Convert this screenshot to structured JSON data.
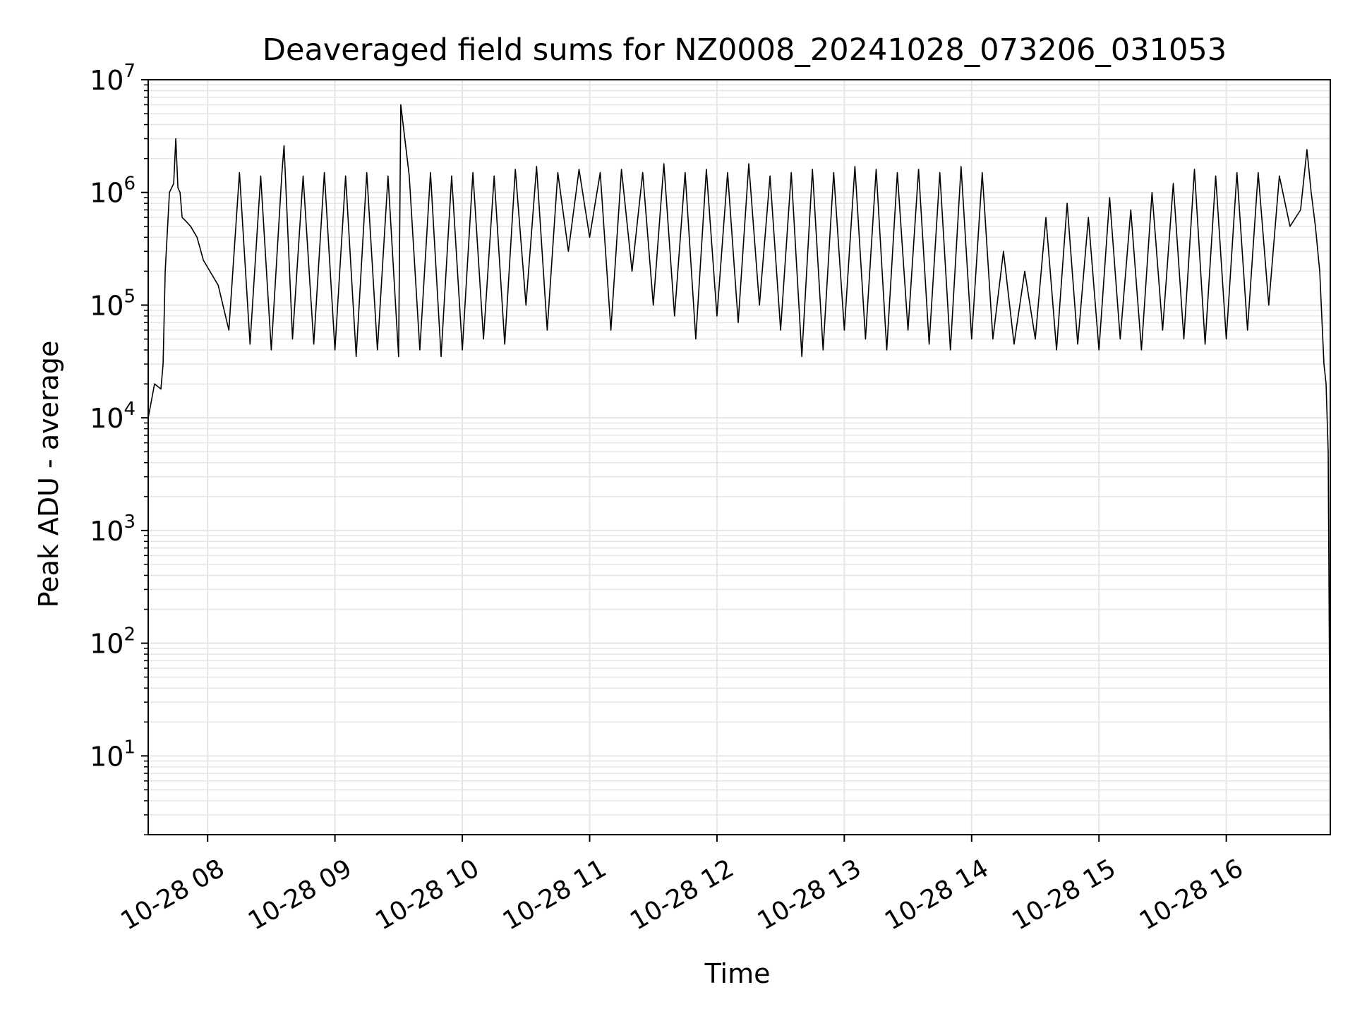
{
  "chart_data": {
    "type": "line",
    "title": "Deaveraged field sums for NZ0008_20241028_073206_031053",
    "xlabel": "Time",
    "ylabel": "Peak ADU - average",
    "yscale": "log",
    "grid": true,
    "grid_minor": true,
    "line_color": "#000000",
    "grid_color": "#e6e6e6",
    "xlim": [
      "2024-10-28 07:32",
      "2024-10-28 16:49"
    ],
    "ylim": [
      2,
      10000000
    ],
    "x_ticks": [
      {
        "label": "10-28 08",
        "time": "2024-10-28 08:00"
      },
      {
        "label": "10-28 09",
        "time": "2024-10-28 09:00"
      },
      {
        "label": "10-28 10",
        "time": "2024-10-28 10:00"
      },
      {
        "label": "10-28 11",
        "time": "2024-10-28 11:00"
      },
      {
        "label": "10-28 12",
        "time": "2024-10-28 12:00"
      },
      {
        "label": "10-28 13",
        "time": "2024-10-28 13:00"
      },
      {
        "label": "10-28 14",
        "time": "2024-10-28 14:00"
      },
      {
        "label": "10-28 15",
        "time": "2024-10-28 15:00"
      },
      {
        "label": "10-28 16",
        "time": "2024-10-28 16:00"
      }
    ],
    "y_ticks": [
      {
        "base": "10",
        "exp": "1",
        "value": 10
      },
      {
        "base": "10",
        "exp": "2",
        "value": 100
      },
      {
        "base": "10",
        "exp": "3",
        "value": 1000
      },
      {
        "base": "10",
        "exp": "4",
        "value": 10000
      },
      {
        "base": "10",
        "exp": "5",
        "value": 100000
      },
      {
        "base": "10",
        "exp": "6",
        "value": 1000000
      },
      {
        "base": "10",
        "exp": "7",
        "value": 10000000
      }
    ],
    "series": [
      {
        "x": [
          "2024-10-28 07:32",
          "2024-10-28 07:35",
          "2024-10-28 07:38",
          "2024-10-28 07:39",
          "2024-10-28 07:40",
          "2024-10-28 07:42",
          "2024-10-28 07:44",
          "2024-10-28 07:45",
          "2024-10-28 07:46",
          "2024-10-28 07:47",
          "2024-10-28 07:48",
          "2024-10-28 07:50",
          "2024-10-28 07:52",
          "2024-10-28 07:55",
          "2024-10-28 07:58",
          "2024-10-28 08:05",
          "2024-10-28 08:10",
          "2024-10-28 08:15",
          "2024-10-28 08:20",
          "2024-10-28 08:25",
          "2024-10-28 08:30",
          "2024-10-28 08:35",
          "2024-10-28 08:36",
          "2024-10-28 08:40",
          "2024-10-28 08:45",
          "2024-10-28 08:50",
          "2024-10-28 08:55",
          "2024-10-28 09:00",
          "2024-10-28 09:05",
          "2024-10-28 09:10",
          "2024-10-28 09:15",
          "2024-10-28 09:20",
          "2024-10-28 09:25",
          "2024-10-28 09:30",
          "2024-10-28 09:31",
          "2024-10-28 09:35",
          "2024-10-28 09:40",
          "2024-10-28 09:45",
          "2024-10-28 09:50",
          "2024-10-28 09:55",
          "2024-10-28 10:00",
          "2024-10-28 10:05",
          "2024-10-28 10:10",
          "2024-10-28 10:15",
          "2024-10-28 10:20",
          "2024-10-28 10:25",
          "2024-10-28 10:30",
          "2024-10-28 10:35",
          "2024-10-28 10:40",
          "2024-10-28 10:45",
          "2024-10-28 10:50",
          "2024-10-28 10:55",
          "2024-10-28 11:00",
          "2024-10-28 11:05",
          "2024-10-28 11:10",
          "2024-10-28 11:15",
          "2024-10-28 11:20",
          "2024-10-28 11:25",
          "2024-10-28 11:30",
          "2024-10-28 11:35",
          "2024-10-28 11:40",
          "2024-10-28 11:45",
          "2024-10-28 11:50",
          "2024-10-28 11:55",
          "2024-10-28 12:00",
          "2024-10-28 12:05",
          "2024-10-28 12:10",
          "2024-10-28 12:15",
          "2024-10-28 12:20",
          "2024-10-28 12:25",
          "2024-10-28 12:30",
          "2024-10-28 12:35",
          "2024-10-28 12:40",
          "2024-10-28 12:45",
          "2024-10-28 12:50",
          "2024-10-28 12:55",
          "2024-10-28 13:00",
          "2024-10-28 13:05",
          "2024-10-28 13:10",
          "2024-10-28 13:15",
          "2024-10-28 13:20",
          "2024-10-28 13:25",
          "2024-10-28 13:30",
          "2024-10-28 13:35",
          "2024-10-28 13:40",
          "2024-10-28 13:45",
          "2024-10-28 13:50",
          "2024-10-28 13:55",
          "2024-10-28 14:00",
          "2024-10-28 14:05",
          "2024-10-28 14:10",
          "2024-10-28 14:15",
          "2024-10-28 14:20",
          "2024-10-28 14:25",
          "2024-10-28 14:30",
          "2024-10-28 14:35",
          "2024-10-28 14:40",
          "2024-10-28 14:45",
          "2024-10-28 14:50",
          "2024-10-28 14:55",
          "2024-10-28 15:00",
          "2024-10-28 15:05",
          "2024-10-28 15:10",
          "2024-10-28 15:15",
          "2024-10-28 15:20",
          "2024-10-28 15:25",
          "2024-10-28 15:30",
          "2024-10-28 15:35",
          "2024-10-28 15:40",
          "2024-10-28 15:45",
          "2024-10-28 15:50",
          "2024-10-28 15:55",
          "2024-10-28 16:00",
          "2024-10-28 16:05",
          "2024-10-28 16:10",
          "2024-10-28 16:15",
          "2024-10-28 16:20",
          "2024-10-28 16:25",
          "2024-10-28 16:30",
          "2024-10-28 16:35",
          "2024-10-28 16:38",
          "2024-10-28 16:40",
          "2024-10-28 16:42",
          "2024-10-28 16:44",
          "2024-10-28 16:46",
          "2024-10-28 16:47",
          "2024-10-28 16:48",
          "2024-10-28 16:49"
        ],
        "values": [
          10000,
          20000,
          18000,
          30000,
          200000,
          1000000,
          1200000,
          3000000,
          1100000,
          1000000,
          600000,
          550000,
          500000,
          400000,
          250000,
          150000,
          60000,
          1500000,
          45000,
          1400000,
          40000,
          1500000,
          2600000,
          50000,
          1400000,
          45000,
          1500000,
          40000,
          1400000,
          35000,
          1500000,
          40000,
          1400000,
          35000,
          6000000,
          1400000,
          40000,
          1500000,
          35000,
          1400000,
          40000,
          1500000,
          50000,
          1400000,
          45000,
          1600000,
          100000,
          1700000,
          60000,
          1500000,
          300000,
          1600000,
          400000,
          1500000,
          60000,
          1600000,
          200000,
          1500000,
          100000,
          1800000,
          80000,
          1500000,
          50000,
          1600000,
          80000,
          1500000,
          70000,
          1800000,
          100000,
          1400000,
          60000,
          1500000,
          35000,
          1600000,
          40000,
          1500000,
          60000,
          1700000,
          50000,
          1600000,
          40000,
          1500000,
          60000,
          1600000,
          45000,
          1500000,
          40000,
          1700000,
          50000,
          1500000,
          50000,
          300000,
          45000,
          200000,
          50000,
          600000,
          40000,
          800000,
          45000,
          600000,
          40000,
          900000,
          50000,
          700000,
          40000,
          1000000,
          60000,
          1200000,
          50000,
          1600000,
          45000,
          1400000,
          50000,
          1500000,
          60000,
          1500000,
          100000,
          1400000,
          500000,
          700000,
          2400000,
          1000000,
          500000,
          200000,
          30000,
          20000,
          5000,
          4
        ]
      }
    ]
  }
}
